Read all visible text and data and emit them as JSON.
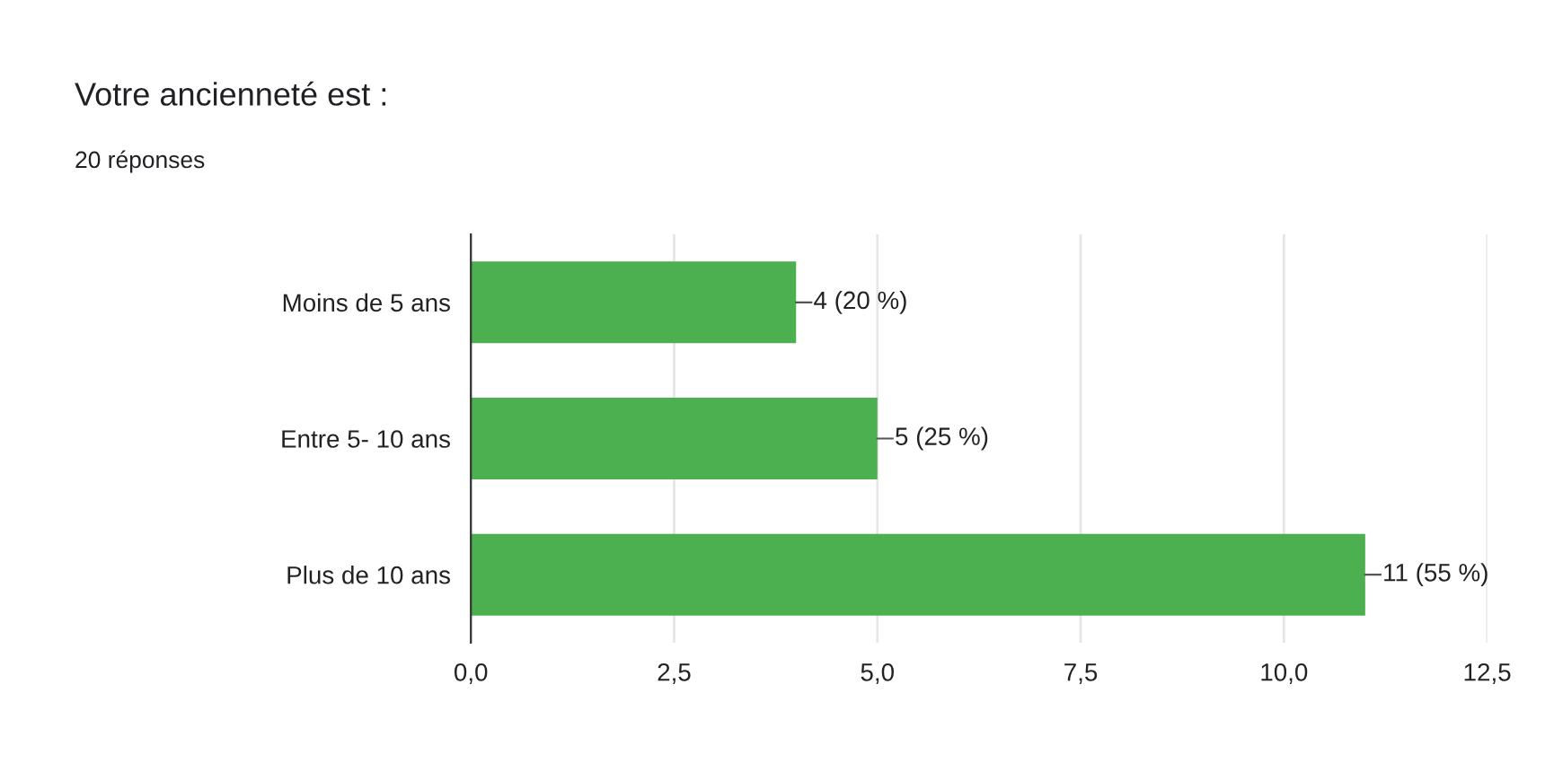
{
  "chart_data": {
    "type": "bar",
    "orientation": "horizontal",
    "title": "Votre ancienneté est :",
    "subtitle": "20 réponses",
    "categories": [
      "Moins de 5 ans",
      "Entre 5- 10 ans",
      "Plus de 10 ans"
    ],
    "values": [
      4,
      5,
      11
    ],
    "value_labels": [
      "4 (20 %)",
      "5 (25 %)",
      "11 (55 %)"
    ],
    "color": "#4caf50",
    "xlim": [
      0,
      12.5
    ],
    "xticks": [
      {
        "value": 0,
        "label": "0,0"
      },
      {
        "value": 2.5,
        "label": "2,5"
      },
      {
        "value": 5,
        "label": "5,0"
      },
      {
        "value": 7.5,
        "label": "7,5"
      },
      {
        "value": 10,
        "label": "10,0"
      },
      {
        "value": 12.5,
        "label": "12,5"
      }
    ],
    "grid": "x",
    "legend": false
  }
}
